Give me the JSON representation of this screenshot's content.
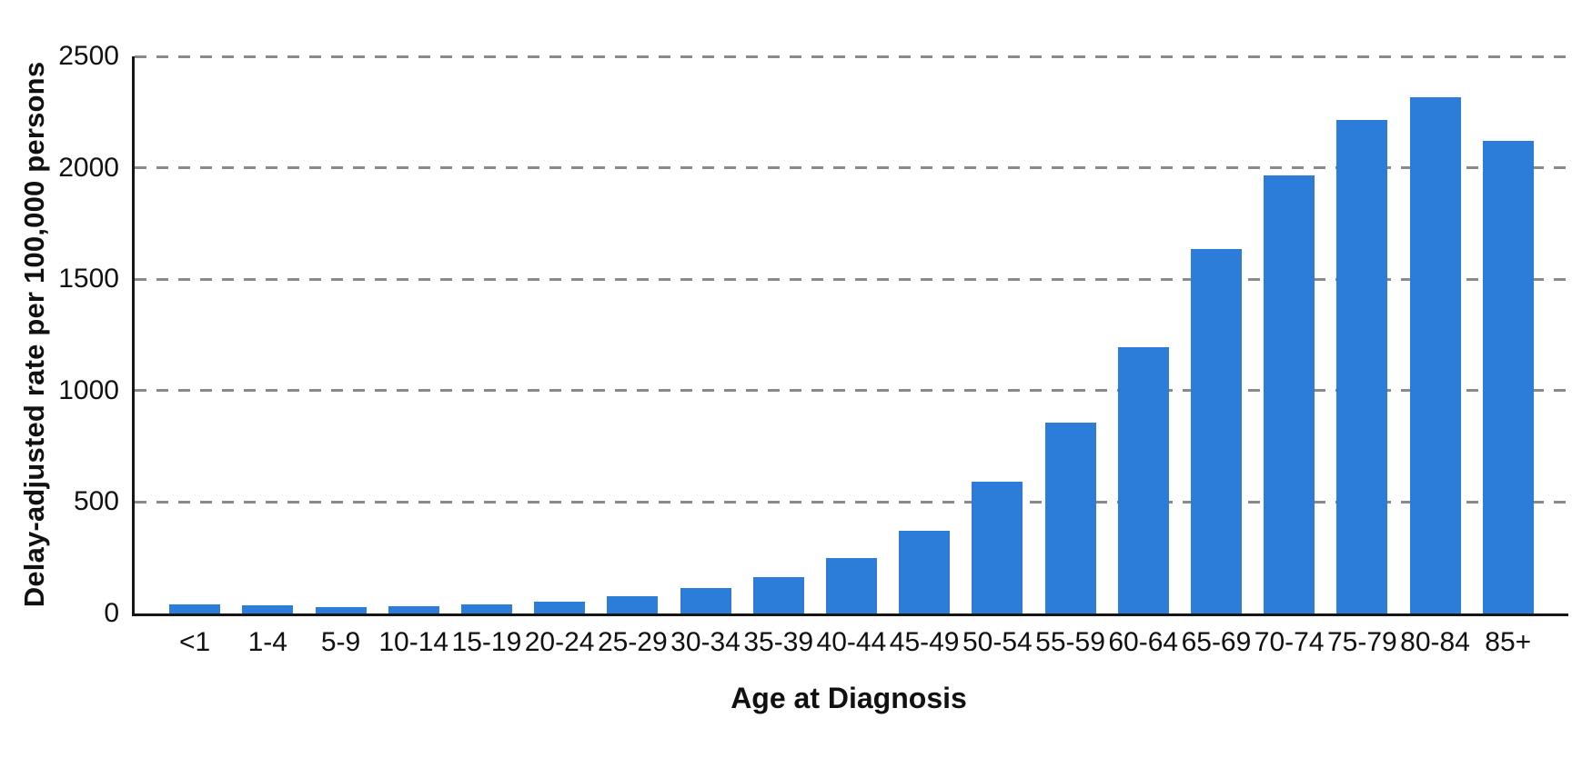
{
  "colors": {
    "bar": "#2b7dd9",
    "grid": "#8a8a8a",
    "axis": "#161616",
    "text": "#111111",
    "background": "#ffffff"
  },
  "chart_data": {
    "type": "bar",
    "title": "",
    "xlabel": "Age at Diagnosis",
    "ylabel": "Delay-adjusted rate per 100,000 persons",
    "categories": [
      "<1",
      "1-4",
      "5-9",
      "10-14",
      "15-19",
      "20-24",
      "25-29",
      "30-34",
      "35-39",
      "40-44",
      "45-49",
      "50-54",
      "55-59",
      "60-64",
      "65-69",
      "70-74",
      "75-79",
      "80-84",
      "85+"
    ],
    "values": [
      40,
      37,
      29,
      32,
      40,
      53,
      77,
      114,
      163,
      248,
      373,
      590,
      855,
      1196,
      1637,
      1967,
      2213,
      2316,
      2119
    ],
    "ylim": [
      0,
      2500
    ],
    "yticks": [
      0,
      500,
      1000,
      1500,
      2000,
      2500
    ],
    "grid": "horizontal-dashed",
    "legend": "none",
    "bar_color": "#2b7dd9"
  }
}
